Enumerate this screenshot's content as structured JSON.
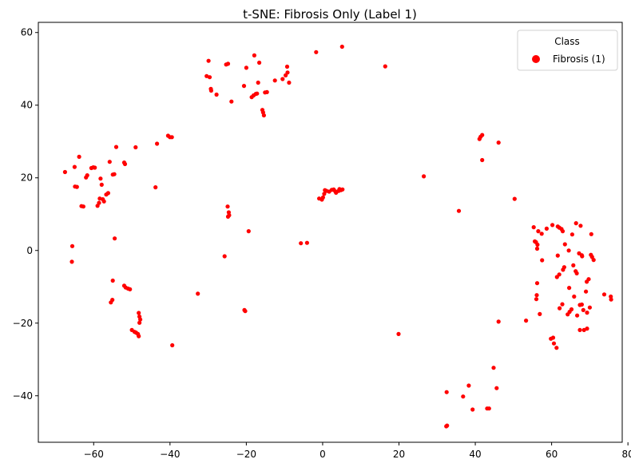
{
  "chart_data": {
    "type": "scatter",
    "title": "t-SNE: Fibrosis Only (Label 1)",
    "xlabel": "",
    "ylabel": "",
    "xlim": [
      -74.5,
      78.5
    ],
    "ylim": [
      -52.8,
      62.8
    ],
    "xticks": [
      -60,
      -40,
      -20,
      0,
      20,
      40,
      60,
      80
    ],
    "xtick_labels": [
      "−60",
      "−40",
      "−20",
      "0",
      "20",
      "40",
      "60",
      "80"
    ],
    "yticks": [
      -40,
      -20,
      0,
      20,
      40,
      60
    ],
    "ytick_labels": [
      "−40",
      "−20",
      "0",
      "20",
      "40",
      "60"
    ],
    "grid": false,
    "legend": {
      "title": "Class",
      "position": "upper right",
      "entries": [
        "Fibrosis (1)"
      ]
    },
    "series": [
      {
        "name": "Fibrosis (1)",
        "color": "#ff0000",
        "points": [
          [
            -67.5,
            21.6
          ],
          [
            -65.0,
            23.0
          ],
          [
            -63.8,
            25.8
          ],
          [
            -64.4,
            17.5
          ],
          [
            -64.9,
            17.6
          ],
          [
            -63.2,
            12.2
          ],
          [
            -62.7,
            12.1
          ],
          [
            -62.0,
            20.1
          ],
          [
            -61.7,
            20.7
          ],
          [
            -60.6,
            22.7
          ],
          [
            -60.1,
            22.9
          ],
          [
            -59.7,
            22.8
          ],
          [
            -59.0,
            12.3
          ],
          [
            -58.6,
            13.1
          ],
          [
            -58.4,
            14.3
          ],
          [
            -58.2,
            19.8
          ],
          [
            -57.9,
            18.1
          ],
          [
            -57.6,
            14.1
          ],
          [
            -57.3,
            13.5
          ],
          [
            -56.7,
            15.4
          ],
          [
            -56.2,
            15.8
          ],
          [
            -55.8,
            24.4
          ],
          [
            -55.0,
            20.9
          ],
          [
            -54.6,
            21.0
          ],
          [
            -54.1,
            28.5
          ],
          [
            -52.0,
            24.2
          ],
          [
            -51.8,
            23.8
          ],
          [
            -49.0,
            28.4
          ],
          [
            -43.4,
            29.4
          ],
          [
            -43.8,
            17.4
          ],
          [
            -40.5,
            31.6
          ],
          [
            -40.0,
            31.2
          ],
          [
            -39.5,
            31.2
          ],
          [
            -65.6,
            1.2
          ],
          [
            -65.7,
            -3.1
          ],
          [
            -54.5,
            3.3
          ],
          [
            -55.0,
            -8.3
          ],
          [
            -55.5,
            -14.3
          ],
          [
            -55.1,
            -13.6
          ],
          [
            -52.0,
            -9.7
          ],
          [
            -51.6,
            -10.2
          ],
          [
            -51.0,
            -10.5
          ],
          [
            -50.5,
            -10.7
          ],
          [
            -50.0,
            -21.9
          ],
          [
            -49.3,
            -22.4
          ],
          [
            -48.9,
            -22.6
          ],
          [
            -48.2,
            -17.2
          ],
          [
            -48.0,
            -18.2
          ],
          [
            -47.8,
            -19.0
          ],
          [
            -48.0,
            -19.9
          ],
          [
            -48.4,
            -23.0
          ],
          [
            -48.2,
            -23.6
          ],
          [
            -39.4,
            -26.1
          ],
          [
            -32.7,
            -11.9
          ],
          [
            -30.4,
            48.0
          ],
          [
            -29.9,
            52.2
          ],
          [
            -29.6,
            47.7
          ],
          [
            -29.3,
            44.5
          ],
          [
            -29.2,
            44.0
          ],
          [
            -27.8,
            42.9
          ],
          [
            -25.3,
            51.2
          ],
          [
            -24.8,
            51.4
          ],
          [
            -23.9,
            41.0
          ],
          [
            -20.6,
            45.3
          ],
          [
            -20.0,
            50.3
          ],
          [
            -18.6,
            42.2
          ],
          [
            -18.1,
            42.7
          ],
          [
            -17.9,
            53.7
          ],
          [
            -17.5,
            43.1
          ],
          [
            -17.2,
            43.2
          ],
          [
            -16.9,
            46.2
          ],
          [
            -16.6,
            51.7
          ],
          [
            -15.8,
            38.7
          ],
          [
            -15.6,
            38.0
          ],
          [
            -15.4,
            37.2
          ],
          [
            -15.1,
            43.5
          ],
          [
            -14.6,
            43.6
          ],
          [
            -12.5,
            46.8
          ],
          [
            -10.5,
            47.2
          ],
          [
            -9.7,
            48.2
          ],
          [
            -9.2,
            49.0
          ],
          [
            -9.3,
            50.6
          ],
          [
            -8.8,
            46.2
          ],
          [
            -1.7,
            54.6
          ],
          [
            5.1,
            56.1
          ],
          [
            16.4,
            50.7
          ],
          [
            -24.9,
            12.1
          ],
          [
            -24.6,
            10.5
          ],
          [
            -24.5,
            9.7
          ],
          [
            -24.8,
            9.3
          ],
          [
            -25.7,
            -1.6
          ],
          [
            -19.4,
            5.3
          ],
          [
            -20.5,
            -16.4
          ],
          [
            -20.3,
            -16.7
          ],
          [
            -5.7,
            2.0
          ],
          [
            -4.1,
            2.1
          ],
          [
            -0.9,
            14.3
          ],
          [
            -0.2,
            14.0
          ],
          [
            0.1,
            14.6
          ],
          [
            0.4,
            15.6
          ],
          [
            0.6,
            16.6
          ],
          [
            1.0,
            16.4
          ],
          [
            1.7,
            16.2
          ],
          [
            2.4,
            16.7
          ],
          [
            2.9,
            16.8
          ],
          [
            3.3,
            16.3
          ],
          [
            3.5,
            15.9
          ],
          [
            4.2,
            16.4
          ],
          [
            4.8,
            16.6
          ],
          [
            5.2,
            16.8
          ],
          [
            4.4,
            16.9
          ],
          [
            19.9,
            -23.0
          ],
          [
            26.5,
            20.4
          ],
          [
            35.7,
            10.9
          ],
          [
            41.1,
            30.7
          ],
          [
            41.4,
            31.3
          ],
          [
            41.8,
            31.8
          ],
          [
            41.8,
            24.9
          ],
          [
            46.1,
            29.7
          ],
          [
            50.3,
            14.2
          ],
          [
            46.1,
            -19.6
          ],
          [
            53.3,
            -19.3
          ],
          [
            32.4,
            -48.4
          ],
          [
            32.6,
            -48.2
          ],
          [
            32.5,
            -39.0
          ],
          [
            36.8,
            -40.2
          ],
          [
            38.3,
            -37.2
          ],
          [
            39.3,
            -43.8
          ],
          [
            43.1,
            -43.5
          ],
          [
            43.6,
            -43.5
          ],
          [
            44.8,
            -32.3
          ],
          [
            45.6,
            -37.9
          ],
          [
            55.3,
            6.4
          ],
          [
            56.5,
            5.3
          ],
          [
            55.6,
            2.5
          ],
          [
            55.9,
            2.3
          ],
          [
            56.3,
            1.6
          ],
          [
            56.2,
            0.5
          ],
          [
            57.5,
            -2.7
          ],
          [
            57.4,
            4.6
          ],
          [
            58.7,
            6.0
          ],
          [
            60.2,
            7.0
          ],
          [
            61.6,
            6.6
          ],
          [
            62.0,
            6.3
          ],
          [
            62.6,
            5.9
          ],
          [
            62.9,
            5.3
          ],
          [
            61.6,
            -1.4
          ],
          [
            63.5,
            1.7
          ],
          [
            64.5,
            0.0
          ],
          [
            66.4,
            7.5
          ],
          [
            67.6,
            6.8
          ],
          [
            65.4,
            4.4
          ],
          [
            70.4,
            4.5
          ],
          [
            63.3,
            -4.6
          ],
          [
            63.0,
            -5.3
          ],
          [
            65.7,
            -4.1
          ],
          [
            66.3,
            -5.7
          ],
          [
            66.6,
            -6.3
          ],
          [
            67.2,
            -0.8
          ],
          [
            67.9,
            -1.3
          ],
          [
            68.0,
            -1.6
          ],
          [
            70.3,
            -1.2
          ],
          [
            70.6,
            -1.8
          ],
          [
            71.0,
            -2.6
          ],
          [
            69.7,
            -7.9
          ],
          [
            69.2,
            -8.6
          ],
          [
            64.6,
            -10.3
          ],
          [
            65.9,
            -12.7
          ],
          [
            69.0,
            -11.3
          ],
          [
            62.0,
            -6.6
          ],
          [
            61.4,
            -7.3
          ],
          [
            56.2,
            -9.0
          ],
          [
            56.1,
            -12.3
          ],
          [
            56.0,
            -13.4
          ],
          [
            56.9,
            -17.5
          ],
          [
            59.8,
            -24.3
          ],
          [
            60.4,
            -24.0
          ],
          [
            60.6,
            -25.6
          ],
          [
            61.3,
            -26.8
          ],
          [
            62.1,
            -15.9
          ],
          [
            62.8,
            -14.8
          ],
          [
            64.2,
            -17.6
          ],
          [
            64.7,
            -16.9
          ],
          [
            65.2,
            -16.2
          ],
          [
            66.7,
            -17.9
          ],
          [
            67.4,
            -15.0
          ],
          [
            67.9,
            -14.9
          ],
          [
            68.3,
            -16.4
          ],
          [
            69.3,
            -17.1
          ],
          [
            70.0,
            -15.7
          ],
          [
            67.4,
            -21.9
          ],
          [
            68.5,
            -21.9
          ],
          [
            69.3,
            -21.5
          ],
          [
            73.8,
            -12.1
          ],
          [
            75.5,
            -12.7
          ],
          [
            75.6,
            -13.5
          ]
        ]
      }
    ]
  }
}
